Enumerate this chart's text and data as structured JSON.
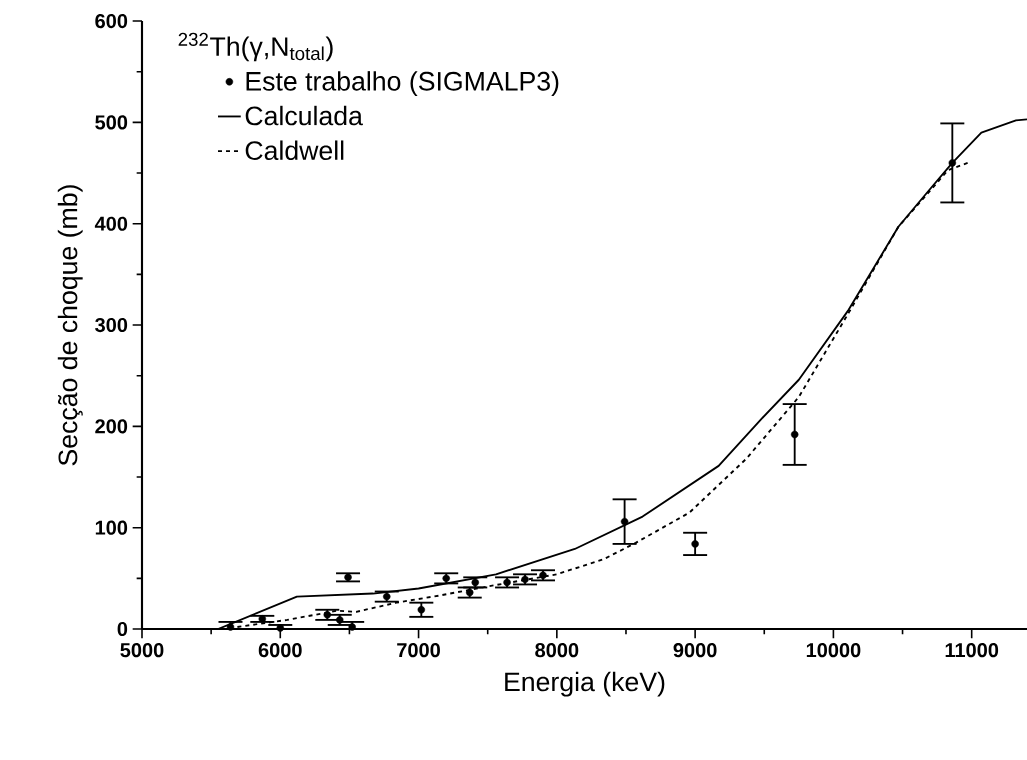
{
  "chart_data": {
    "type": "scatter",
    "xlabel": "Energia (keV)",
    "ylabel": "Secção de choque (mb)",
    "legend_title": "$^{232}$Th(γ,N$_{total}$)",
    "xlim": [
      5000,
      11400
    ],
    "ylim": [
      0,
      600
    ],
    "xticks": [
      5000,
      6000,
      7000,
      8000,
      9000,
      10000,
      11000
    ],
    "yticks": [
      0,
      100,
      200,
      300,
      400,
      500,
      600
    ],
    "grid": false,
    "legend": "top left",
    "series": [
      {
        "name": "Este trabalho (SIGMALP3)",
        "type": "scatter",
        "color": "#000000",
        "marker": "circle",
        "x": [
          5640,
          5870,
          6000,
          6340,
          6430,
          6490,
          6520,
          6770,
          7020,
          7200,
          7370,
          7410,
          7640,
          7770,
          7900,
          8490,
          9000,
          9720,
          10860
        ],
        "values": [
          2,
          10,
          1,
          14,
          9,
          51,
          2,
          32,
          19,
          50,
          36,
          46,
          46,
          49,
          53,
          106,
          84,
          192,
          460
        ],
        "errors": [
          5,
          3,
          3,
          5,
          5,
          4,
          5,
          5,
          7,
          5,
          5,
          5,
          5,
          5,
          5,
          22,
          11,
          30,
          39
        ]
      },
      {
        "name": "Calculada",
        "type": "line",
        "color": "#000000",
        "marker": "none",
        "line_style": "solid",
        "x": [
          5000,
          5550,
          6120,
          6670,
          7000,
          7560,
          8130,
          8620,
          9170,
          9470,
          9750,
          10110,
          10470,
          10710,
          10860,
          11070,
          11320,
          11400
        ],
        "values": [
          0,
          0,
          32,
          35,
          40,
          54,
          79,
          111,
          161,
          206,
          246,
          315,
          397,
          436,
          460,
          490,
          502,
          503
        ]
      },
      {
        "name": "Caldwell",
        "type": "line",
        "color": "#000000",
        "marker": "none",
        "line_style": "dashed",
        "x": [
          5690,
          6050,
          6410,
          6550,
          6840,
          7150,
          7500,
          8000,
          8340,
          8570,
          8960,
          9370,
          9750,
          10110,
          10470,
          10830,
          10990
        ],
        "values": [
          2,
          9,
          18,
          17,
          26,
          33,
          42,
          54,
          69,
          85,
          115,
          168,
          229,
          312,
          397,
          453,
          461
        ]
      }
    ]
  }
}
